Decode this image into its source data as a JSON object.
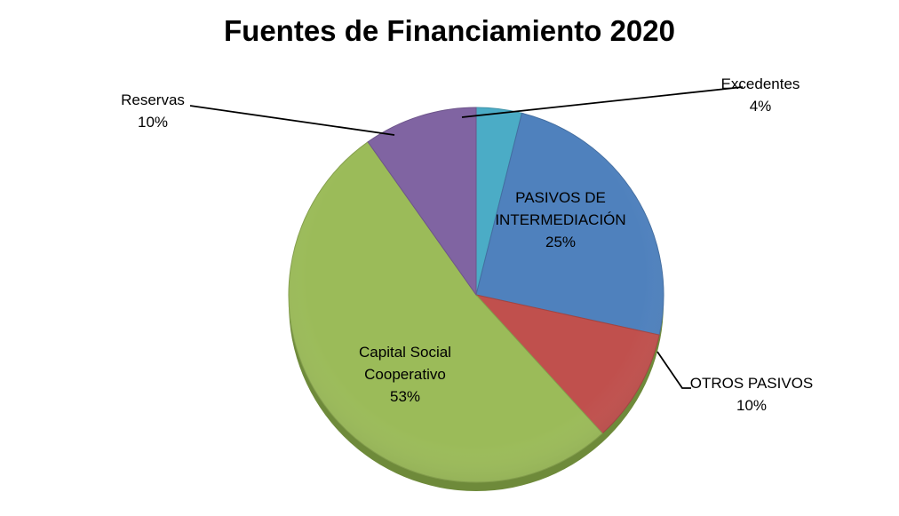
{
  "chart_data": {
    "type": "pie",
    "title": "Fuentes de Financiamiento 2020",
    "slices": [
      {
        "name": "Excedentes",
        "value": 4,
        "label": "4%",
        "color": "#4BACC6",
        "label_lines": [
          "Excedentes",
          "4%"
        ]
      },
      {
        "name": "PASIVOS DE INTERMEDIACIÓN",
        "value": 25,
        "label": "25%",
        "color": "#4F81BD",
        "label_lines": [
          "PASIVOS DE",
          "INTERMEDIACIÓN",
          "25%"
        ]
      },
      {
        "name": "OTROS PASIVOS",
        "value": 10,
        "label": "10%",
        "color": "#C0504D",
        "label_lines": [
          "OTROS PASIVOS",
          "10%"
        ]
      },
      {
        "name": "Capital Social Cooperativo",
        "value": 53,
        "label": "53%",
        "color": "#9BBB59",
        "label_lines": [
          "Capital Social",
          "Cooperativo",
          "53%"
        ]
      },
      {
        "name": "Reservas",
        "value": 10,
        "label": "10%",
        "color": "#8064A2",
        "label_lines": [
          "Reservas",
          "10%"
        ]
      }
    ],
    "legend": "none",
    "labels_placement": "callouts"
  }
}
